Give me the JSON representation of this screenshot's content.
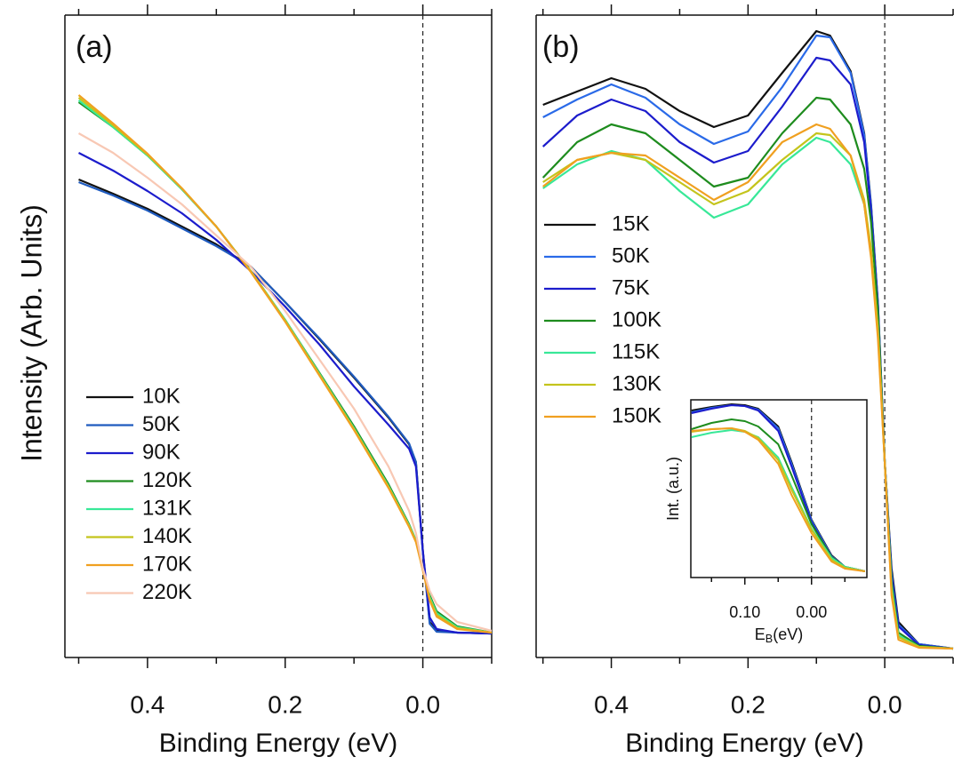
{
  "chart_data": [
    {
      "type": "line",
      "title": "(a)",
      "ylabel": "Intensity (Arb. Units)",
      "xlabel": "Binding Energy (eV)",
      "xlim": [
        0.52,
        -0.1
      ],
      "ylim": [
        0,
        716
      ],
      "xticks": [
        0.4,
        0.2,
        {
          "value": 0,
          "label": "0.0"
        }
      ],
      "xminor": [
        0.5,
        0.3,
        0.1,
        -0.1
      ],
      "vline": 0,
      "legend": "lower left",
      "x": [
        0.5,
        0.45,
        0.4,
        0.35,
        0.3,
        0.25,
        0.2,
        0.15,
        0.1,
        0.05,
        0.02,
        0.01,
        0.0,
        -0.01,
        -0.02,
        -0.05,
        -0.1
      ],
      "series": [
        {
          "name": "10K",
          "color": "#111111",
          "values": [
            531,
            515,
            498,
            478,
            458,
            433,
            393,
            351,
            308,
            263,
            233,
            213,
            113,
            33,
            23,
            21,
            20
          ]
        },
        {
          "name": "50K",
          "color": "#1f5bbf",
          "values": [
            528,
            513,
            496,
            476,
            456,
            433,
            393,
            352,
            309,
            264,
            234,
            213,
            111,
            31,
            22,
            21,
            20
          ]
        },
        {
          "name": "90K",
          "color": "#1c1ccc",
          "values": [
            561,
            541,
            518,
            493,
            463,
            428,
            388,
            345,
            298,
            255,
            228,
            208,
            113,
            38,
            25,
            21,
            20
          ]
        },
        {
          "name": "120K",
          "color": "#1e8c1e",
          "values": [
            618,
            590,
            558,
            520,
            478,
            428,
            373,
            313,
            253,
            188,
            143,
            125,
            93,
            63,
            45,
            28,
            21
          ]
        },
        {
          "name": "131K",
          "color": "#38e898",
          "values": [
            620,
            590,
            558,
            520,
            478,
            428,
            373,
            312,
            251,
            186,
            142,
            125,
            93,
            61,
            43,
            27,
            21
          ]
        },
        {
          "name": "140K",
          "color": "#c4c41c",
          "values": [
            623,
            592,
            559,
            521,
            478,
            428,
            372,
            311,
            250,
            185,
            141,
            124,
            92,
            59,
            41,
            26,
            21
          ]
        },
        {
          "name": "170K",
          "color": "#f0a020",
          "values": [
            626,
            594,
            560,
            521,
            478,
            427,
            371,
            310,
            249,
            184,
            140,
            123,
            91,
            57,
            39,
            25,
            21
          ]
        },
        {
          "name": "220K",
          "color": "#f8c8b4",
          "values": [
            583,
            561,
            533,
            503,
            468,
            433,
            383,
            328,
            273,
            208,
            158,
            133,
            93,
            68,
            53,
            33,
            23
          ]
        }
      ]
    },
    {
      "type": "line",
      "title": "(b)",
      "xlabel": "Binding Energy (eV)",
      "xlim": [
        0.51,
        -0.1
      ],
      "ylim": [
        0,
        716
      ],
      "xticks": [
        0.4,
        0.2,
        {
          "value": 0,
          "label": "0.0"
        }
      ],
      "xminor": [
        0.5,
        0.3,
        0.1,
        -0.1
      ],
      "vline": 0,
      "legend": "center left",
      "x": [
        0.5,
        0.45,
        0.4,
        0.35,
        0.3,
        0.25,
        0.2,
        0.15,
        0.1,
        0.08,
        0.05,
        0.03,
        0.02,
        0.01,
        0.0,
        -0.01,
        -0.02,
        -0.05,
        -0.1
      ],
      "series": [
        {
          "name": "15K",
          "color": "#111111",
          "values": [
            615,
            630,
            645,
            633,
            608,
            590,
            603,
            651,
            698,
            693,
            653,
            583,
            503,
            393,
            213,
            93,
            33,
            8,
            3
          ]
        },
        {
          "name": "50K",
          "color": "#2a6ae8",
          "values": [
            601,
            621,
            638,
            623,
            593,
            571,
            585,
            635,
            693,
            691,
            651,
            581,
            501,
            391,
            213,
            88,
            30,
            8,
            3
          ]
        },
        {
          "name": "75K",
          "color": "#1c1ccc",
          "values": [
            568,
            603,
            621,
            608,
            573,
            550,
            563,
            613,
            668,
            665,
            638,
            573,
            495,
            388,
            213,
            85,
            28,
            7,
            3
          ]
        },
        {
          "name": "100K",
          "color": "#1e8c1e",
          "values": [
            533,
            573,
            593,
            583,
            553,
            523,
            533,
            583,
            623,
            621,
            593,
            543,
            483,
            383,
            213,
            78,
            21,
            6,
            3
          ]
        },
        {
          "name": "115K",
          "color": "#38e898",
          "values": [
            521,
            548,
            563,
            553,
            518,
            488,
            503,
            548,
            578,
            573,
            548,
            503,
            448,
            363,
            213,
            73,
            18,
            5,
            3
          ]
        },
        {
          "name": "130K",
          "color": "#c4c41c",
          "values": [
            528,
            553,
            561,
            553,
            528,
            503,
            518,
            553,
            583,
            581,
            558,
            508,
            453,
            363,
            213,
            68,
            16,
            5,
            3
          ]
        },
        {
          "name": "150K",
          "color": "#f0a020",
          "values": [
            523,
            553,
            561,
            558,
            533,
            508,
            528,
            573,
            593,
            588,
            558,
            503,
            443,
            353,
            213,
            63,
            13,
            4,
            3
          ]
        }
      ]
    },
    {
      "type": "line",
      "ylabel": "Int. (a.u.)",
      "xlabel_parts": [
        "E",
        "B",
        "(eV)"
      ],
      "xlim": [
        0.181,
        -0.083
      ],
      "ylim": [
        0,
        200
      ],
      "xticks": [
        {
          "value": 0.1,
          "label": "0.10"
        },
        {
          "value": 0,
          "label": "0.00"
        }
      ],
      "xminor": [
        0.15,
        0.05,
        -0.05
      ],
      "vline": 0,
      "x": [
        0.18,
        0.15,
        0.12,
        0.1,
        0.08,
        0.05,
        0.03,
        0.0,
        -0.03,
        -0.05,
        -0.08
      ],
      "series": [
        {
          "color": "#111111",
          "values": [
            188,
            192,
            195,
            194,
            190,
            170,
            130,
            65,
            25,
            12,
            7
          ]
        },
        {
          "color": "#2a6ae8",
          "values": [
            186,
            191,
            194,
            193,
            189,
            168,
            128,
            64,
            24,
            12,
            7
          ]
        },
        {
          "color": "#1c1ccc",
          "values": [
            185,
            190,
            194,
            193,
            188,
            165,
            125,
            62,
            23,
            11,
            7
          ]
        },
        {
          "color": "#1e8c1e",
          "values": [
            167,
            174,
            178,
            176,
            170,
            150,
            115,
            60,
            23,
            12,
            7
          ]
        },
        {
          "color": "#38e898",
          "values": [
            158,
            163,
            166,
            164,
            158,
            135,
            102,
            55,
            22,
            12,
            7
          ]
        },
        {
          "color": "#c4c41c",
          "values": [
            164,
            167,
            168,
            165,
            157,
            132,
            99,
            54,
            20,
            11,
            7
          ]
        },
        {
          "color": "#f0a020",
          "values": [
            165,
            167,
            168,
            164,
            155,
            128,
            93,
            50,
            18,
            10,
            7
          ]
        }
      ]
    }
  ]
}
